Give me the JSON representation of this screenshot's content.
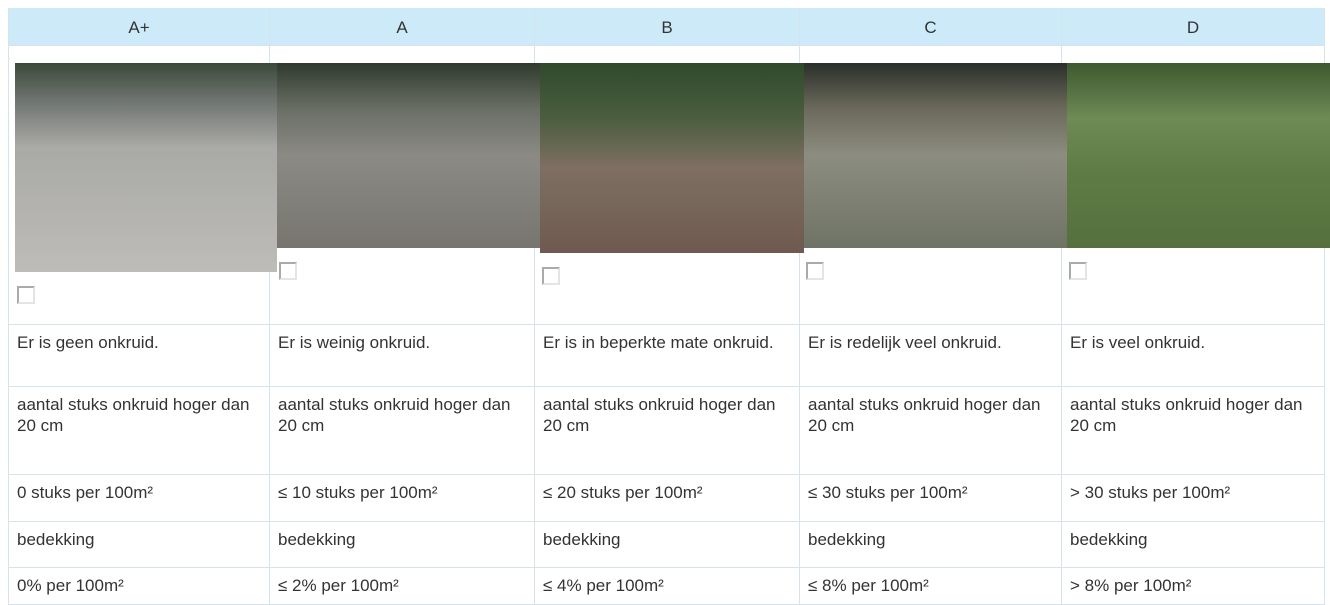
{
  "table": {
    "columns": [
      {
        "grade": "A+",
        "description": "Er is geen onkruid.",
        "weeds_label": "aantal stuks onkruid hoger dan 20 cm",
        "weeds": "0 stuks per 100m²",
        "cover_label": "bedekking",
        "cover": "0% per 100m²"
      },
      {
        "grade": "A",
        "description": "Er is weinig onkruid.",
        "weeds_label": "aantal stuks onkruid hoger dan 20 cm",
        "weeds": "≤ 10 stuks per 100m²",
        "cover_label": "bedekking",
        "cover": "≤ 2% per 100m²"
      },
      {
        "grade": "B",
        "description": "Er is in beperkte mate onkruid.",
        "weeds_label": "aantal stuks onkruid hoger dan 20 cm",
        "weeds": "≤ 20 stuks per 100m²",
        "cover_label": "bedekking",
        "cover": "≤ 4% per 100m²"
      },
      {
        "grade": "C",
        "description": "Er is redelijk veel onkruid.",
        "weeds_label": "aantal stuks onkruid hoger dan 20 cm",
        "weeds": "≤ 30 stuks per 100m²",
        "cover_label": "bedekking",
        "cover": "≤ 8% per 100m²"
      },
      {
        "grade": "D",
        "description": "Er is veel onkruid.",
        "weeds_label": "aantal stuks onkruid hoger dan 20 cm",
        "weeds": "> 30 stuks per 100m²",
        "cover_label": "bedekking",
        "cover": "> 8% per 100m²"
      }
    ]
  }
}
